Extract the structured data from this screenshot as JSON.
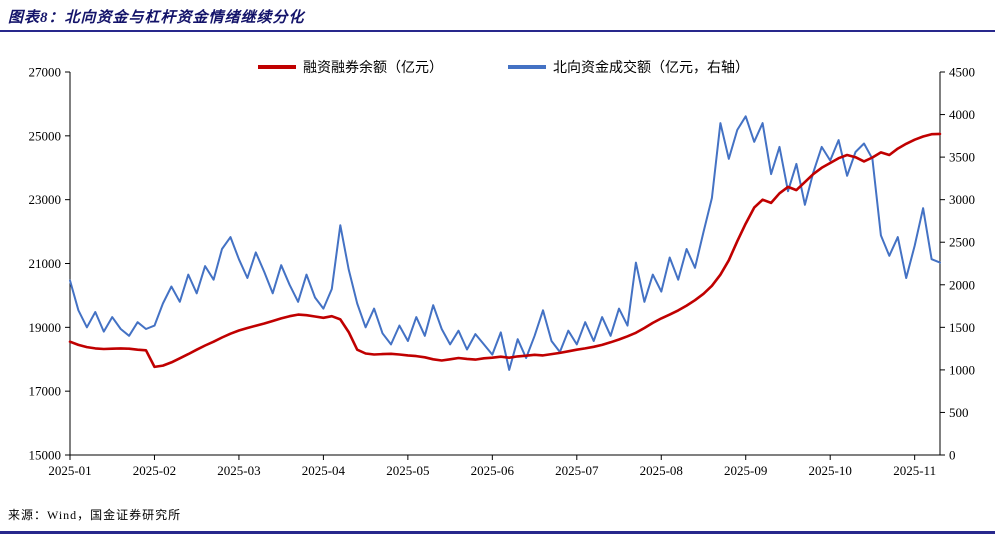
{
  "header": {
    "title": "图表8：北向资金与杠杆资金情绪继续分化"
  },
  "footer": {
    "source": "来源：Wind，国金证券研究所"
  },
  "colors": {
    "accent_navy": "#28288C",
    "red_series": "#C00000",
    "blue_series": "#4472C4",
    "axis_text": "#000000"
  },
  "chart_data": {
    "type": "line",
    "title": "图表8：北向资金与杠杆资金情绪继续分化",
    "grid": false,
    "legend_position": "top",
    "left_axis": {
      "min": 15000,
      "max": 27000,
      "ticks": [
        27000,
        25000,
        23000,
        21000,
        19000,
        17000,
        15000
      ]
    },
    "right_axis": {
      "min": 0,
      "max": 4500,
      "ticks": [
        4500,
        4000,
        3500,
        3000,
        2500,
        2000,
        1500,
        1000,
        500,
        0
      ]
    },
    "x_ticks": [
      {
        "label": "2025-01",
        "index": 0
      },
      {
        "label": "2025-02",
        "index": 10
      },
      {
        "label": "2025-03",
        "index": 20
      },
      {
        "label": "2025-04",
        "index": 30
      },
      {
        "label": "2025-05",
        "index": 40
      },
      {
        "label": "2025-06",
        "index": 50
      },
      {
        "label": "2025-07",
        "index": 60
      },
      {
        "label": "2025-08",
        "index": 70
      },
      {
        "label": "2025-09",
        "index": 80
      },
      {
        "label": "2025-10",
        "index": 90
      },
      {
        "label": "2025-11",
        "index": 100
      }
    ],
    "series": [
      {
        "name": "融资融券余额（亿元）",
        "axis": "left",
        "color": "#C00000",
        "values": [
          18550,
          18450,
          18380,
          18340,
          18320,
          18330,
          18340,
          18330,
          18300,
          18280,
          17760,
          17800,
          17900,
          18030,
          18160,
          18300,
          18430,
          18550,
          18680,
          18800,
          18900,
          18980,
          19050,
          19120,
          19200,
          19280,
          19350,
          19400,
          19380,
          19340,
          19300,
          19350,
          19250,
          18850,
          18300,
          18180,
          18150,
          18160,
          18170,
          18150,
          18120,
          18100,
          18060,
          18000,
          17960,
          18000,
          18040,
          18010,
          17990,
          18030,
          18050,
          18080,
          18050,
          18090,
          18110,
          18140,
          18120,
          18160,
          18200,
          18250,
          18300,
          18340,
          18390,
          18450,
          18530,
          18620,
          18720,
          18830,
          18980,
          19140,
          19280,
          19400,
          19530,
          19680,
          19850,
          20050,
          20300,
          20650,
          21100,
          21700,
          22250,
          22750,
          23000,
          22900,
          23200,
          23400,
          23300,
          23550,
          23800,
          24000,
          24150,
          24300,
          24400,
          24330,
          24200,
          24320,
          24480,
          24400,
          24600,
          24750,
          24880,
          24980,
          25050,
          25060
        ]
      },
      {
        "name": "北向资金成交额（亿元，右轴）",
        "axis": "right",
        "color": "#4472C4",
        "values": [
          2050,
          1700,
          1500,
          1680,
          1450,
          1620,
          1480,
          1400,
          1560,
          1480,
          1520,
          1780,
          1980,
          1800,
          2120,
          1900,
          2220,
          2060,
          2420,
          2560,
          2300,
          2080,
          2380,
          2150,
          1900,
          2230,
          2000,
          1800,
          2120,
          1850,
          1720,
          1950,
          2700,
          2180,
          1780,
          1500,
          1720,
          1430,
          1300,
          1520,
          1340,
          1620,
          1400,
          1760,
          1480,
          1300,
          1460,
          1240,
          1420,
          1300,
          1180,
          1440,
          1000,
          1360,
          1140,
          1400,
          1700,
          1340,
          1210,
          1460,
          1300,
          1560,
          1340,
          1620,
          1400,
          1720,
          1520,
          2260,
          1800,
          2120,
          1920,
          2320,
          2060,
          2420,
          2200,
          2620,
          3020,
          3900,
          3480,
          3820,
          3980,
          3680,
          3900,
          3300,
          3620,
          3100,
          3420,
          2940,
          3320,
          3620,
          3460,
          3700,
          3280,
          3560,
          3660,
          3480,
          2580,
          2340,
          2560,
          2080,
          2460,
          2900,
          2300,
          2260
        ]
      }
    ]
  }
}
